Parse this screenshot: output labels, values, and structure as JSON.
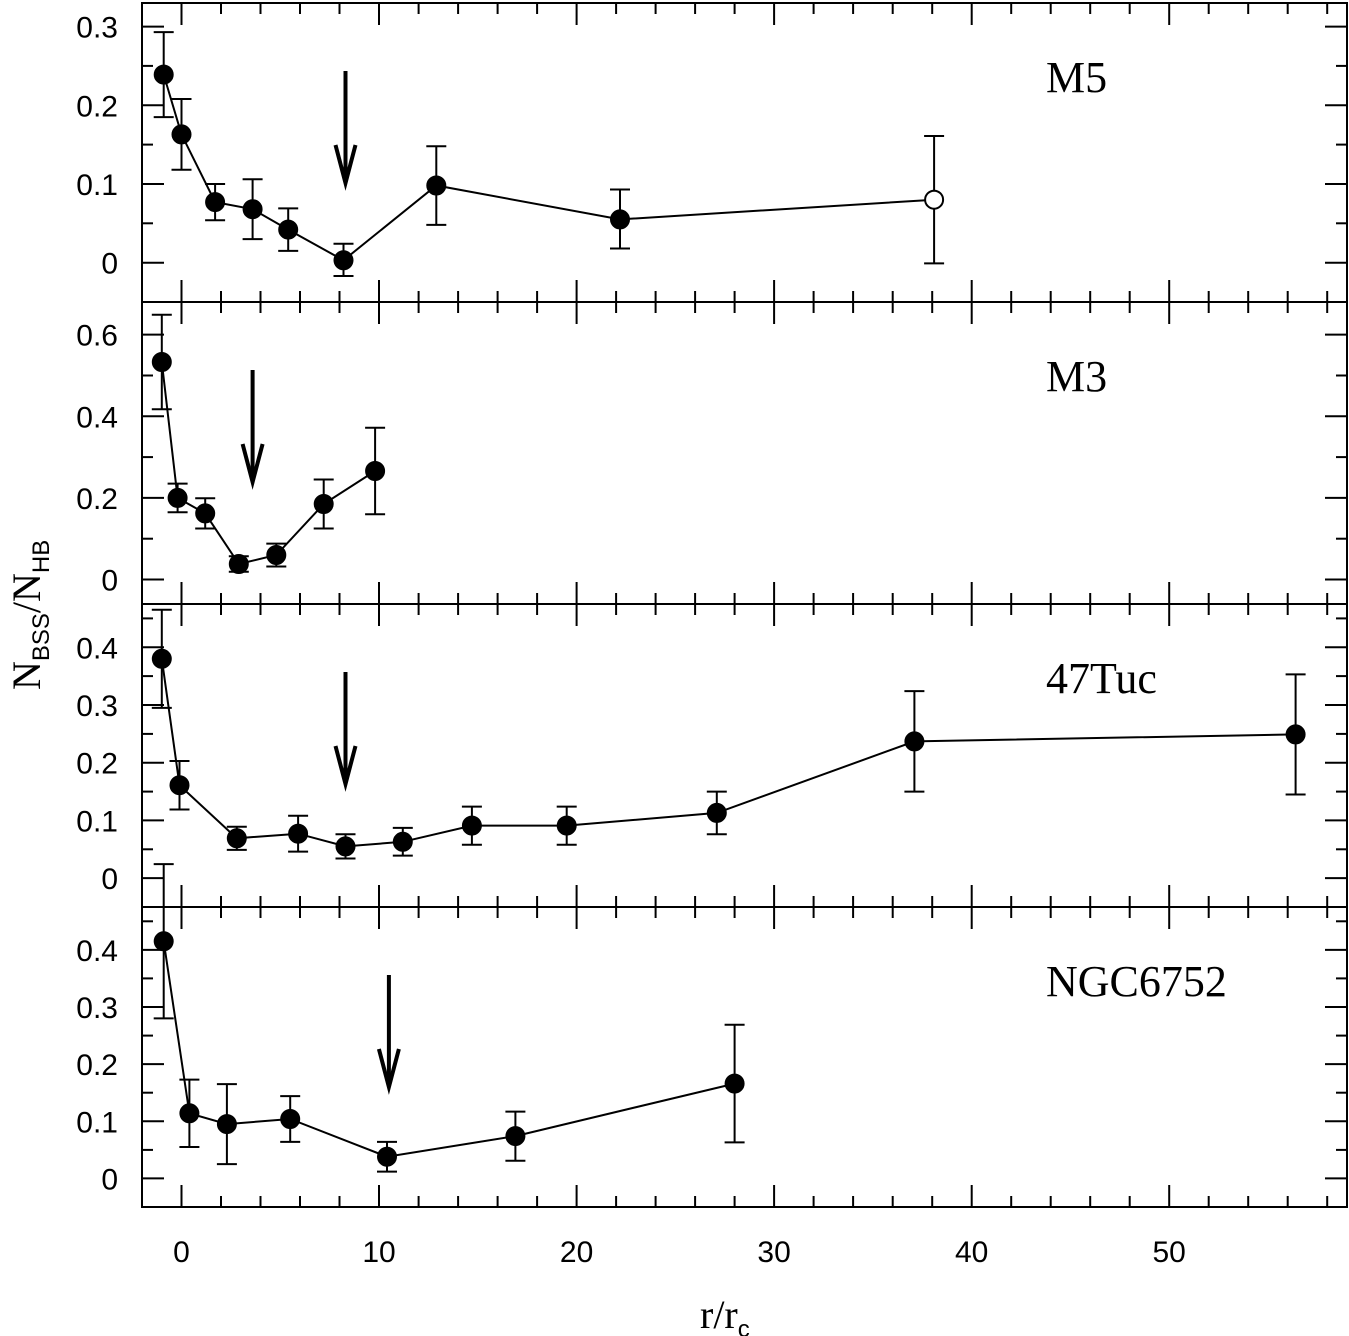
{
  "chart_data": {
    "type": "line",
    "xlabel": {
      "main": "r/r",
      "sub": "c"
    },
    "ylabel": {
      "n1": "N",
      "s1": "BSS",
      "sep": "/",
      "n2": "N",
      "s2": "HB"
    },
    "xlim": [
      -2,
      59
    ],
    "x_major_ticks": [
      0,
      10,
      20,
      30,
      40,
      50
    ],
    "x_tick_labels": [
      "0",
      "10",
      "20",
      "30",
      "40",
      "50"
    ],
    "panels": [
      {
        "name": "M5",
        "ylim": [
          -0.05,
          0.33
        ],
        "yticks": [
          0,
          0.1,
          0.2,
          0.3
        ],
        "ytick_labels": [
          "0",
          "0.1",
          "0.2",
          "0.3"
        ],
        "ytick_minor": 0.05,
        "arrow_x": 8.3,
        "points": [
          {
            "x": -0.9,
            "y": 0.239,
            "lo": 0.185,
            "hi": 0.293,
            "open": false
          },
          {
            "x": 0.0,
            "y": 0.163,
            "lo": 0.118,
            "hi": 0.208,
            "open": false
          },
          {
            "x": 1.7,
            "y": 0.077,
            "lo": 0.054,
            "hi": 0.1,
            "open": false
          },
          {
            "x": 3.6,
            "y": 0.068,
            "lo": 0.03,
            "hi": 0.106,
            "open": false
          },
          {
            "x": 5.4,
            "y": 0.042,
            "lo": 0.015,
            "hi": 0.069,
            "open": false
          },
          {
            "x": 8.2,
            "y": 0.003,
            "lo": -0.017,
            "hi": 0.024,
            "open": false
          },
          {
            "x": 12.9,
            "y": 0.098,
            "lo": 0.048,
            "hi": 0.148,
            "open": false
          },
          {
            "x": 22.2,
            "y": 0.055,
            "lo": 0.018,
            "hi": 0.093,
            "open": false
          },
          {
            "x": 38.1,
            "y": 0.08,
            "lo": -0.001,
            "hi": 0.161,
            "open": true
          }
        ]
      },
      {
        "name": "M3",
        "ylim": [
          -0.06,
          0.68
        ],
        "yticks": [
          0,
          0.2,
          0.4,
          0.6
        ],
        "ytick_labels": [
          "0",
          "0.2",
          "0.4",
          "0.6"
        ],
        "ytick_minor": 0.1,
        "arrow_x": 3.6,
        "points": [
          {
            "x": -1.0,
            "y": 0.533,
            "lo": 0.417,
            "hi": 0.649,
            "open": false
          },
          {
            "x": -0.2,
            "y": 0.2,
            "lo": 0.165,
            "hi": 0.235,
            "open": false
          },
          {
            "x": 1.2,
            "y": 0.162,
            "lo": 0.125,
            "hi": 0.199,
            "open": false
          },
          {
            "x": 2.9,
            "y": 0.038,
            "lo": 0.019,
            "hi": 0.057,
            "open": false
          },
          {
            "x": 4.8,
            "y": 0.06,
            "lo": 0.032,
            "hi": 0.088,
            "open": false
          },
          {
            "x": 7.2,
            "y": 0.185,
            "lo": 0.125,
            "hi": 0.245,
            "open": false
          },
          {
            "x": 9.8,
            "y": 0.266,
            "lo": 0.16,
            "hi": 0.372,
            "open": false
          }
        ]
      },
      {
        "name": "47Tuc",
        "ylim": [
          -0.05,
          0.475
        ],
        "yticks": [
          0,
          0.1,
          0.2,
          0.3,
          0.4
        ],
        "ytick_labels": [
          "0",
          "0.1",
          "0.2",
          "0.3",
          "0.4"
        ],
        "ytick_minor": 0.05,
        "arrow_x": 8.3,
        "points": [
          {
            "x": -1.0,
            "y": 0.38,
            "lo": 0.295,
            "hi": 0.465,
            "open": false
          },
          {
            "x": -0.1,
            "y": 0.161,
            "lo": 0.119,
            "hi": 0.203,
            "open": false
          },
          {
            "x": 2.8,
            "y": 0.069,
            "lo": 0.049,
            "hi": 0.089,
            "open": false
          },
          {
            "x": 5.9,
            "y": 0.077,
            "lo": 0.046,
            "hi": 0.108,
            "open": false
          },
          {
            "x": 8.3,
            "y": 0.055,
            "lo": 0.034,
            "hi": 0.076,
            "open": false
          },
          {
            "x": 11.2,
            "y": 0.063,
            "lo": 0.039,
            "hi": 0.087,
            "open": false
          },
          {
            "x": 14.7,
            "y": 0.091,
            "lo": 0.058,
            "hi": 0.124,
            "open": false
          },
          {
            "x": 19.5,
            "y": 0.091,
            "lo": 0.058,
            "hi": 0.124,
            "open": false
          },
          {
            "x": 27.1,
            "y": 0.113,
            "lo": 0.076,
            "hi": 0.15,
            "open": false
          },
          {
            "x": 37.1,
            "y": 0.237,
            "lo": 0.15,
            "hi": 0.324,
            "open": false
          },
          {
            "x": 56.4,
            "y": 0.249,
            "lo": 0.145,
            "hi": 0.353,
            "open": false
          }
        ]
      },
      {
        "name": "NGC6752",
        "ylim": [
          -0.05,
          0.475
        ],
        "yticks": [
          0,
          0.1,
          0.2,
          0.3,
          0.4
        ],
        "ytick_labels": [
          "0",
          "0.1",
          "0.2",
          "0.3",
          "0.4"
        ],
        "ytick_minor": 0.05,
        "arrow_x": 10.5,
        "points": [
          {
            "x": -0.9,
            "y": 0.415,
            "lo": 0.28,
            "hi": 0.55,
            "open": false
          },
          {
            "x": 0.4,
            "y": 0.114,
            "lo": 0.055,
            "hi": 0.173,
            "open": false
          },
          {
            "x": 2.3,
            "y": 0.095,
            "lo": 0.025,
            "hi": 0.165,
            "open": false
          },
          {
            "x": 5.5,
            "y": 0.104,
            "lo": 0.064,
            "hi": 0.144,
            "open": false
          },
          {
            "x": 10.4,
            "y": 0.038,
            "lo": 0.012,
            "hi": 0.064,
            "open": false
          },
          {
            "x": 16.9,
            "y": 0.074,
            "lo": 0.031,
            "hi": 0.117,
            "open": false
          },
          {
            "x": 28.0,
            "y": 0.166,
            "lo": 0.063,
            "hi": 0.269,
            "open": false
          }
        ]
      }
    ]
  }
}
